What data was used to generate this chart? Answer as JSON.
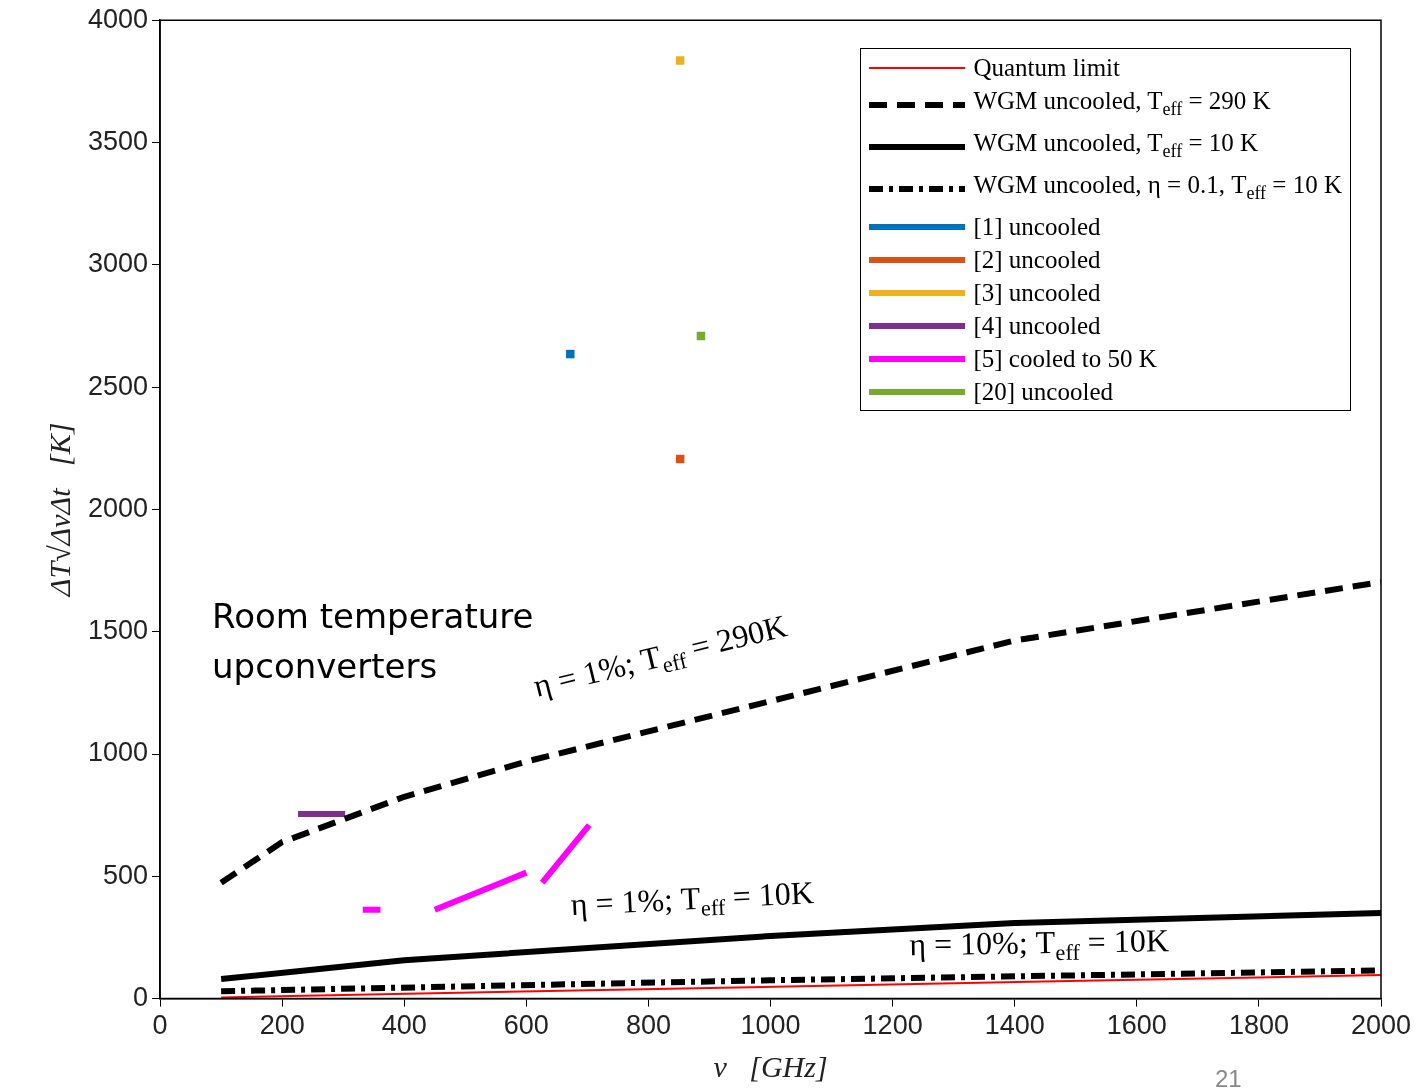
{
  "chart_data": {
    "type": "line",
    "xlabel": "ν   [GHz]",
    "ylabel": "ΔT√ΔνΔt   [K]",
    "xlim": [
      0,
      2000
    ],
    "ylim": [
      0,
      4000
    ],
    "xticks": [
      0,
      200,
      400,
      600,
      800,
      1000,
      1200,
      1400,
      1600,
      1800,
      2000
    ],
    "yticks": [
      0,
      500,
      1000,
      1500,
      2000,
      2500,
      3000,
      3500,
      4000
    ],
    "grid": false,
    "legend": "top right",
    "series": [
      {
        "name": "Quantum limit",
        "color": "#ff0000",
        "line_style": "solid",
        "x": [
          100,
          2000
        ],
        "values": [
          5,
          96
        ]
      },
      {
        "name": "WGM uncooled, T$_{eff}$ = 290 K",
        "color": "#000000",
        "line_style": "dashed",
        "x": [
          100,
          200,
          400,
          600,
          1000,
          1400,
          2000
        ],
        "values": [
          474,
          640,
          825,
          969,
          1216,
          1464,
          1703
        ]
      },
      {
        "name": "WGM uncooled, T$_{eff}$ = 10 K",
        "color": "#000000",
        "line_style": "solid",
        "x": [
          100,
          400,
          1000,
          1400,
          2000
        ],
        "values": [
          80,
          157,
          256,
          309,
          350
        ]
      },
      {
        "name": "WGM uncooled, η = 0.1, T$_{eff}$ = 10 K",
        "color": "#000000",
        "line_style": "dashdot",
        "x": [
          100,
          1000,
          2000
        ],
        "values": [
          30,
          75,
          115
        ]
      },
      {
        "name": "[1] uncooled",
        "type": "scatter",
        "marker": "square",
        "color": "#0072bd",
        "x": [
          672
        ],
        "values": [
          2635
        ]
      },
      {
        "name": "[2] uncooled",
        "type": "scatter",
        "marker": "square",
        "color": "#d95319",
        "x": [
          852
        ],
        "values": [
          2206
        ]
      },
      {
        "name": "[3] uncooled",
        "type": "scatter",
        "marker": "square",
        "color": "#edb120",
        "x": [
          852
        ],
        "values": [
          3835
        ]
      },
      {
        "name": "[4] uncooled",
        "color": "#7e2f8e",
        "line_style": "solid",
        "x": [
          226,
          303
        ],
        "values": [
          755,
          755
        ]
      },
      {
        "name": "[5] cooled to 50 K",
        "color": "#ff00ff",
        "line_style": "solid",
        "x": [
          332,
          361,
          400,
          450,
          600,
          610,
          626,
          703
        ],
        "values": [
          363,
          363,
          null,
          363,
          515,
          null,
          474,
          709
        ]
      },
      {
        "name": "[20] uncooled",
        "type": "scatter",
        "marker": "square",
        "color": "#77ac30",
        "x": [
          886
        ],
        "values": [
          2709
        ]
      }
    ],
    "annotations": [
      "η = 1%; T$_{eff}$ = 290K",
      "η = 1%; T$_{eff}$ = 10K",
      "η = 10%; T$_{eff}$ = 10K",
      "Room temperature\nupconverters",
      "21"
    ]
  }
}
